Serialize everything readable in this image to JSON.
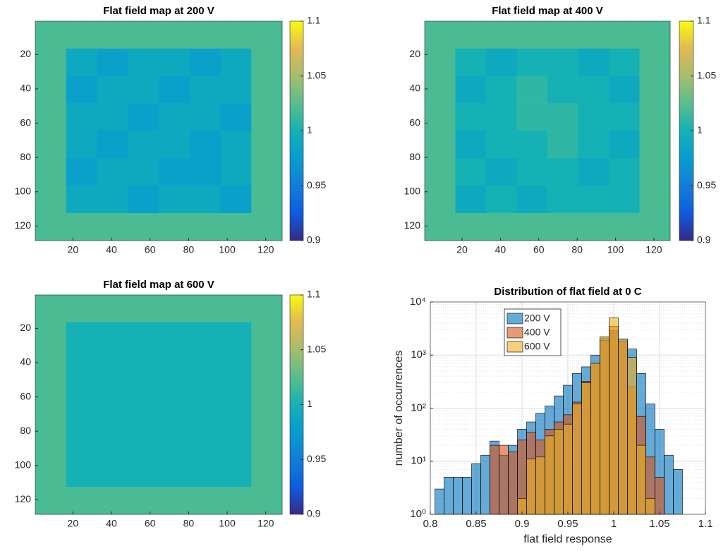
{
  "chart_data": [
    {
      "type": "heatmap",
      "title": "Flat field map at 200 V",
      "xlim": [
        0.5,
        128.5
      ],
      "ylim": [
        0.5,
        128.5
      ],
      "y_reversed": true,
      "xticks": [
        20,
        40,
        60,
        80,
        100,
        120
      ],
      "yticks": [
        20,
        40,
        60,
        80,
        100,
        120
      ],
      "clim": [
        0.9,
        1.1
      ],
      "cticks": [
        0.9,
        0.95,
        1,
        1.05,
        1.1
      ],
      "colormap": "parula",
      "z": [
        [
          1.02,
          1.02,
          1.02,
          1.02,
          1.02,
          1.02,
          1.02,
          1.02
        ],
        [
          1.02,
          0.99,
          0.98,
          0.99,
          0.99,
          0.98,
          0.99,
          1.02
        ],
        [
          1.02,
          0.98,
          0.99,
          0.99,
          0.98,
          0.99,
          0.99,
          1.02
        ],
        [
          1.02,
          0.99,
          0.99,
          0.98,
          0.99,
          0.99,
          0.98,
          1.02
        ],
        [
          1.02,
          0.99,
          0.98,
          0.99,
          0.99,
          0.98,
          0.99,
          1.02
        ],
        [
          1.02,
          0.98,
          0.99,
          0.99,
          0.98,
          0.98,
          0.99,
          1.02
        ],
        [
          1.02,
          0.99,
          0.99,
          0.98,
          0.99,
          0.99,
          0.98,
          1.02
        ],
        [
          1.02,
          1.02,
          1.02,
          1.02,
          1.02,
          1.02,
          1.02,
          1.02
        ]
      ]
    },
    {
      "type": "heatmap",
      "title": "Flat field map at 400 V",
      "xlim": [
        0.5,
        128.5
      ],
      "ylim": [
        0.5,
        128.5
      ],
      "y_reversed": true,
      "xticks": [
        20,
        40,
        60,
        80,
        100,
        120
      ],
      "yticks": [
        20,
        40,
        60,
        80,
        100,
        120
      ],
      "clim": [
        0.9,
        1.1
      ],
      "cticks": [
        0.9,
        0.95,
        1,
        1.05,
        1.1
      ],
      "colormap": "parula",
      "z": [
        [
          1.02,
          1.02,
          1.02,
          1.02,
          1.02,
          1.02,
          1.02,
          1.02
        ],
        [
          1.02,
          1,
          0.99,
          1,
          1,
          0.99,
          1,
          1.02
        ],
        [
          1.02,
          0.99,
          1,
          1.01,
          1,
          1,
          0.99,
          1.02
        ],
        [
          1.02,
          1,
          1,
          1.01,
          1.01,
          1,
          1,
          1.02
        ],
        [
          1.02,
          0.99,
          1,
          1,
          1.01,
          1,
          0.99,
          1.02
        ],
        [
          1.02,
          1,
          0.99,
          1,
          1,
          0.99,
          1,
          1.02
        ],
        [
          1.02,
          0.99,
          1,
          0.99,
          1,
          1,
          1,
          1.02
        ],
        [
          1.02,
          1.02,
          1.02,
          1.02,
          1.02,
          1.02,
          1.02,
          1.02
        ]
      ]
    },
    {
      "type": "heatmap",
      "title": "Flat field map at 600 V",
      "xlim": [
        0.5,
        128.5
      ],
      "ylim": [
        0.5,
        128.5
      ],
      "y_reversed": true,
      "xticks": [
        20,
        40,
        60,
        80,
        100,
        120
      ],
      "yticks": [
        20,
        40,
        60,
        80,
        100,
        120
      ],
      "clim": [
        0.9,
        1.1
      ],
      "cticks": [
        0.9,
        0.95,
        1,
        1.05,
        1.1
      ],
      "colormap": "parula",
      "z": [
        [
          1.02,
          1.02,
          1.02,
          1.02,
          1.02,
          1.02,
          1.02,
          1.02
        ],
        [
          1.02,
          1,
          1,
          1,
          1,
          1,
          1,
          1.02
        ],
        [
          1.02,
          1,
          1,
          1,
          1,
          1,
          1,
          1.02
        ],
        [
          1.02,
          1,
          1,
          1,
          1,
          1,
          1,
          1.02
        ],
        [
          1.02,
          1,
          1,
          1,
          1,
          1,
          1,
          1.02
        ],
        [
          1.02,
          1,
          1,
          1,
          1,
          1,
          1,
          1.02
        ],
        [
          1.02,
          1,
          1,
          1,
          1,
          1,
          1,
          1.02
        ],
        [
          1.02,
          1.02,
          1.02,
          1.02,
          1.02,
          1.02,
          1.02,
          1.02
        ]
      ]
    },
    {
      "type": "histogram",
      "title": "Distribution of flat field at 0 C",
      "x_label": "flat field response",
      "y_label": "number of occurrences",
      "xlim": [
        0.8,
        1.1
      ],
      "xticks": [
        0.8,
        0.85,
        0.9,
        0.95,
        1,
        1.05,
        1.1
      ],
      "ylim": [
        1,
        10000
      ],
      "log_y": true,
      "grid": true,
      "legend": "north-west",
      "yticks": [
        {
          "value": 1,
          "label": "10⁰"
        },
        {
          "value": 10,
          "label": "10¹"
        },
        {
          "value": 100,
          "label": "10²"
        },
        {
          "value": 1000,
          "label": "10³"
        },
        {
          "value": 10000,
          "label": "10⁴"
        }
      ],
      "series": [
        {
          "name": "200 V",
          "color": "#0072bd",
          "bins": [
            0.805,
            0.815,
            0.825,
            0.835,
            0.845,
            0.855,
            0.865,
            0.875,
            0.885,
            0.895,
            0.905,
            0.915,
            0.925,
            0.935,
            0.945,
            0.955,
            0.965,
            0.975,
            0.985,
            0.995,
            1.005,
            1.015,
            1.025,
            1.035,
            1.045,
            1.055,
            1.065,
            1.075
          ],
          "values": [
            3,
            5,
            5,
            5,
            9,
            13,
            24,
            13,
            20,
            40,
            55,
            80,
            110,
            170,
            270,
            450,
            600,
            1000,
            2100,
            2900,
            2000,
            1300,
            450,
            120,
            40,
            13,
            7
          ]
        },
        {
          "name": "400 V",
          "color": "#d95319",
          "bins": [
            0.865,
            0.875,
            0.885,
            0.895,
            0.905,
            0.915,
            0.925,
            0.935,
            0.945,
            0.955,
            0.965,
            0.975,
            0.985,
            0.995,
            1.005,
            1.015,
            1.025,
            1.035,
            1.045,
            1.055
          ],
          "values": [
            20,
            20,
            15,
            25,
            35,
            25,
            40,
            55,
            75,
            130,
            320,
            700,
            1900,
            3500,
            1800,
            250,
            70,
            12,
            5
          ]
        },
        {
          "name": "600 V",
          "color": "#edb120",
          "bins": [
            0.895,
            0.905,
            0.915,
            0.925,
            0.935,
            0.945,
            0.955,
            0.965,
            0.975,
            0.985,
            0.995,
            1.005,
            1.015,
            1.025,
            1.035,
            1.045
          ],
          "values": [
            2,
            11,
            12,
            30,
            40,
            50,
            120,
            300,
            700,
            2200,
            5000,
            2000,
            900,
            20,
            2
          ]
        }
      ]
    }
  ]
}
